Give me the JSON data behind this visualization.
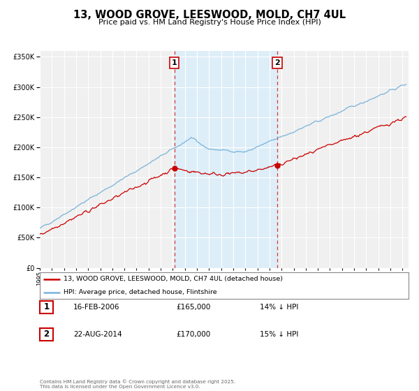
{
  "title": "13, WOOD GROVE, LEESWOOD, MOLD, CH7 4UL",
  "subtitle": "Price paid vs. HM Land Registry's House Price Index (HPI)",
  "background_color": "#ffffff",
  "plot_bg_color": "#f0f0f0",
  "grid_color": "#ffffff",
  "hpi_color": "#7ab3d9",
  "price_color": "#cc0000",
  "purchase1_date": 2006.12,
  "purchase1_price": 165000,
  "purchase2_date": 2014.64,
  "purchase2_price": 170000,
  "ylim": [
    0,
    360000
  ],
  "xlim_start": 1995,
  "xlim_end": 2025.5,
  "legend_house": "13, WOOD GROVE, LEESWOOD, MOLD, CH7 4UL (detached house)",
  "legend_hpi": "HPI: Average price, detached house, Flintshire",
  "table_row1": [
    "1",
    "16-FEB-2006",
    "£165,000",
    "14% ↓ HPI"
  ],
  "table_row2": [
    "2",
    "22-AUG-2014",
    "£170,000",
    "15% ↓ HPI"
  ],
  "footnote": "Contains HM Land Registry data © Crown copyright and database right 2025.\nThis data is licensed under the Open Government Licence v3.0.",
  "shaded_start": 2006.12,
  "shaded_end": 2014.64
}
